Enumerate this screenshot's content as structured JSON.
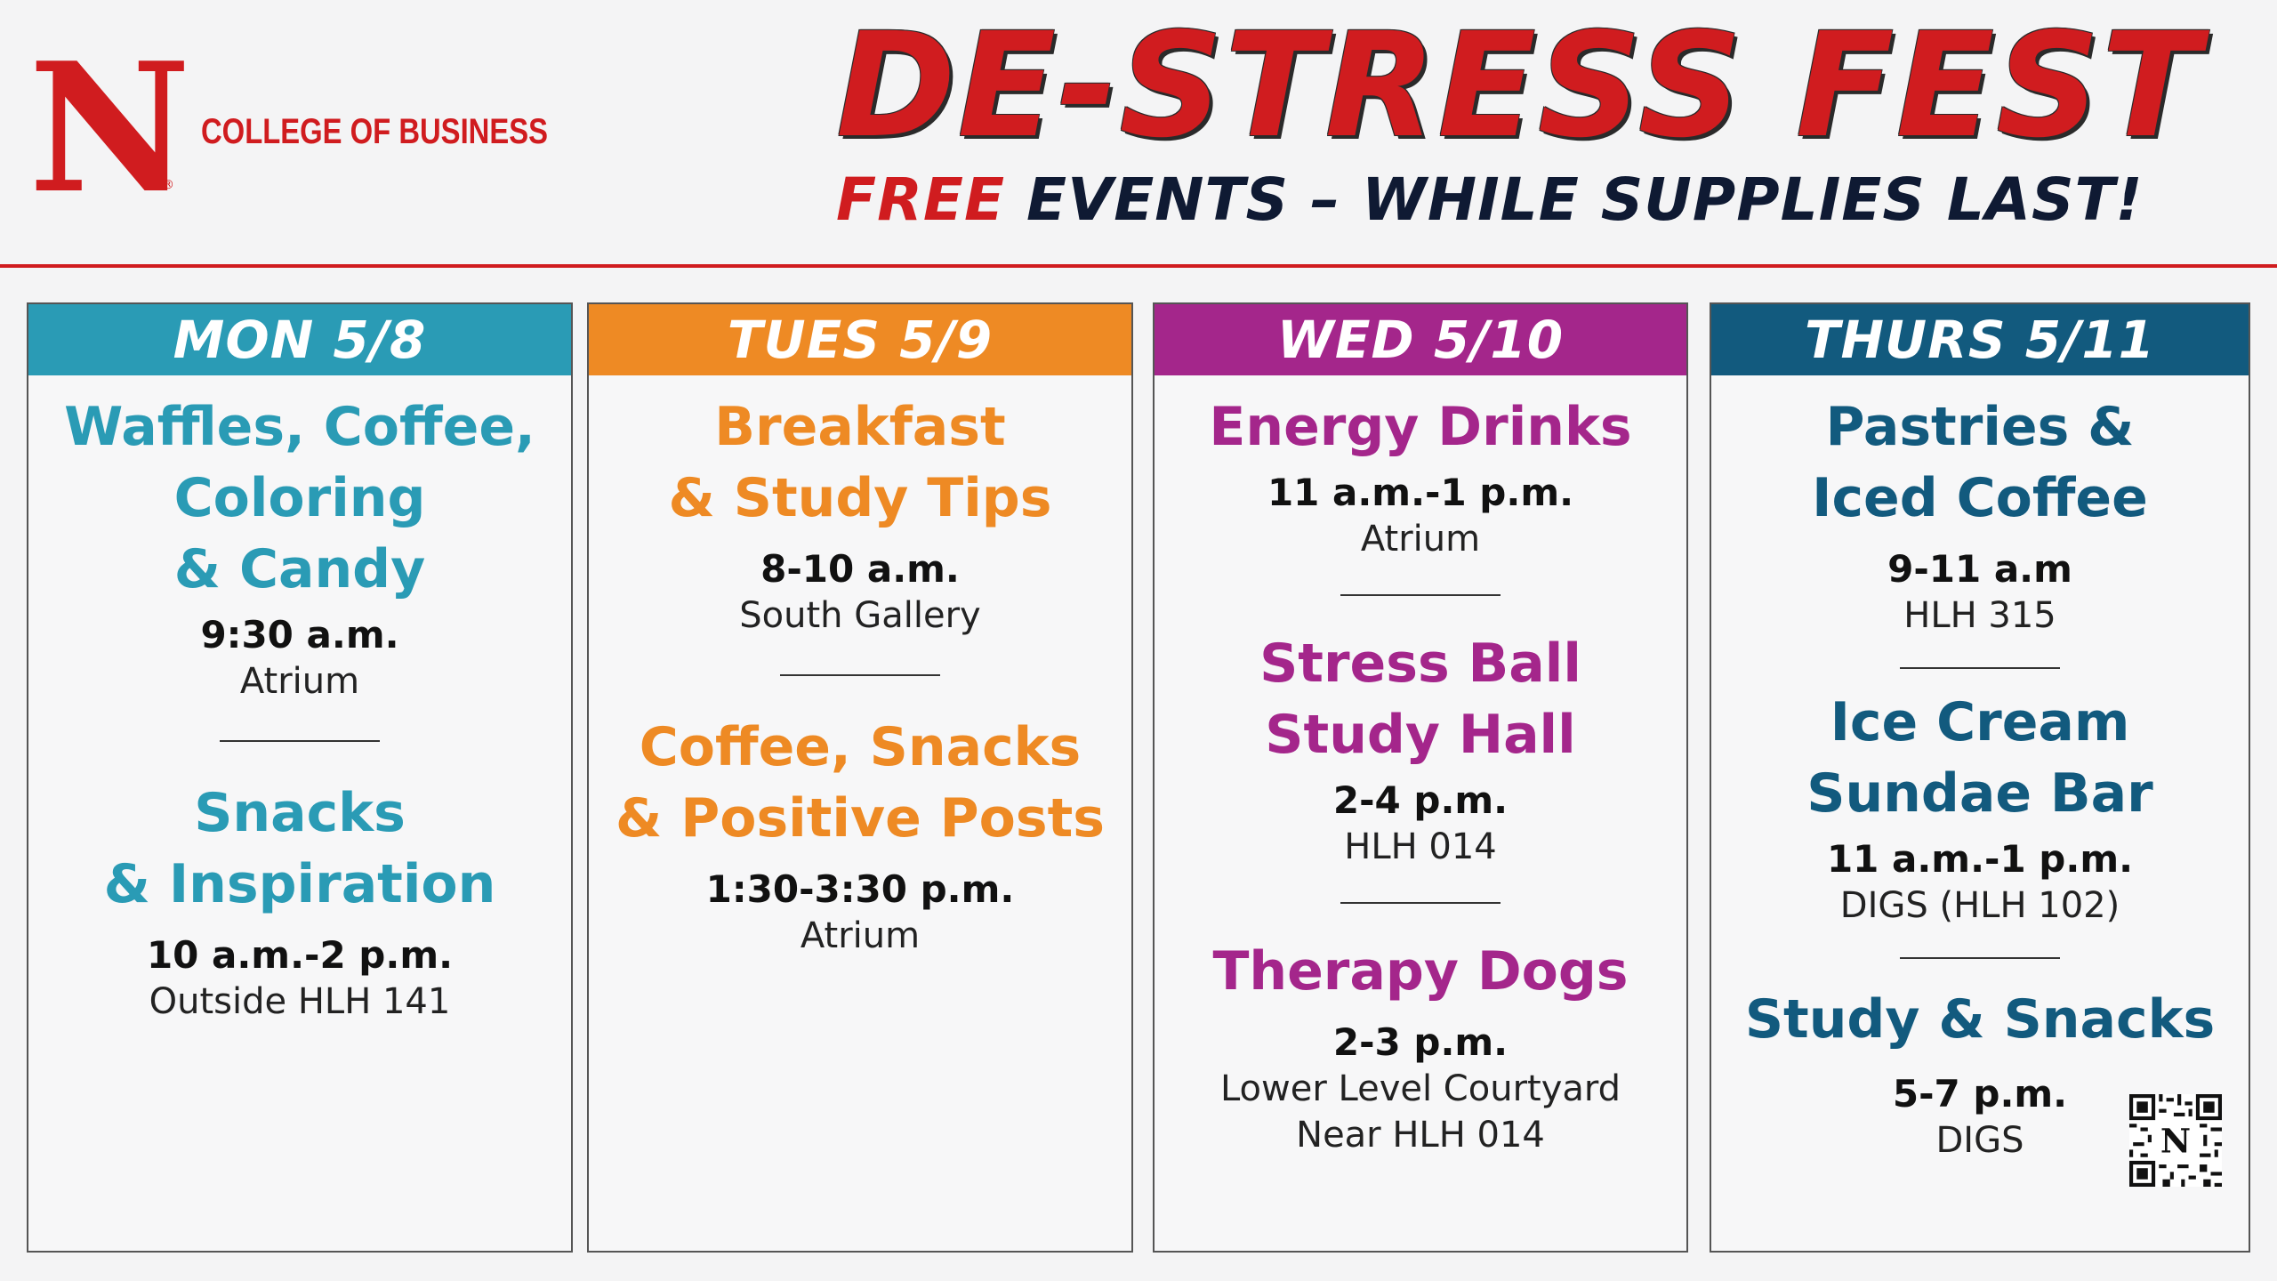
{
  "header": {
    "logo_letter": "N",
    "logo_reg": "®",
    "college": "COLLEGE OF BUSINESS",
    "title": "DE-STRESS FEST",
    "subtitle_free": "FREE",
    "subtitle_rest": " EVENTS – WHILE SUPPLIES LAST!"
  },
  "colors": {
    "brand_red": "#d01c1f",
    "mon": "#2a9bb5",
    "tue": "#ee8a24",
    "wed": "#a4268b",
    "thu": "#125a7e"
  },
  "days": [
    {
      "label": "MON 5/8",
      "events": [
        {
          "title_lines": [
            "Waffles, Coffee,",
            "Coloring",
            "& Candy"
          ],
          "time": "9:30 a.m.",
          "location": [
            "Atrium"
          ]
        },
        {
          "title_lines": [
            "Snacks",
            "& Inspiration"
          ],
          "time": "10 a.m.-2 p.m.",
          "location": [
            "Outside HLH 141"
          ]
        }
      ]
    },
    {
      "label": "TUES 5/9",
      "events": [
        {
          "title_lines": [
            "Breakfast",
            "& Study Tips"
          ],
          "time": "8-10 a.m.",
          "location": [
            "South Gallery"
          ]
        },
        {
          "title_lines": [
            "Coffee, Snacks",
            "& Positive Posts"
          ],
          "time": "1:30-3:30 p.m.",
          "location": [
            "Atrium"
          ]
        }
      ]
    },
    {
      "label": "WED 5/10",
      "events": [
        {
          "title_lines": [
            "Energy Drinks"
          ],
          "time": "11 a.m.-1 p.m.",
          "location": [
            "Atrium"
          ]
        },
        {
          "title_lines": [
            "Stress Ball",
            "Study Hall"
          ],
          "time": "2-4 p.m.",
          "location": [
            "HLH 014"
          ]
        },
        {
          "title_lines": [
            "Therapy Dogs"
          ],
          "time": "2-3 p.m.",
          "location": [
            "Lower Level Courtyard",
            "Near HLH 014"
          ]
        }
      ]
    },
    {
      "label": "THURS 5/11",
      "events": [
        {
          "title_lines": [
            "Pastries &",
            "Iced Coffee"
          ],
          "time": "9-11 a.m",
          "location": [
            "HLH 315"
          ]
        },
        {
          "title_lines": [
            "Ice Cream",
            "Sundae Bar"
          ],
          "time": "11 a.m.-1 p.m.",
          "location": [
            "DIGS (HLH 102)"
          ]
        },
        {
          "title_lines": [
            "Study & Snacks"
          ],
          "time": "5-7 p.m.",
          "location": [
            "DIGS"
          ]
        }
      ]
    }
  ],
  "qr_icon": "qr-code-icon"
}
